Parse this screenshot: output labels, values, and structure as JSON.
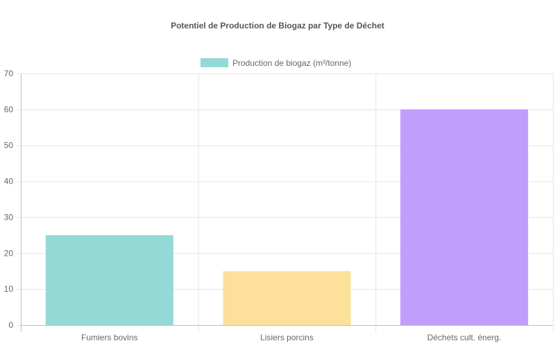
{
  "chart_data": {
    "type": "bar",
    "title": "Potentiel de Production de Biogaz par Type de Déchet",
    "categories": [
      "Fumiers bovins",
      "Lisiers porcins",
      "Déchets cult. énerg."
    ],
    "series": [
      {
        "name": "Production de biogaz (m³/tonne)",
        "values": [
          25,
          15,
          60
        ]
      }
    ],
    "bar_colors": [
      "#94d9d6",
      "#fde19a",
      "#c19dfe"
    ],
    "legend_color": "#94d9d6",
    "legend_position": "top",
    "xlabel": "",
    "ylabel": "",
    "ylim": [
      0,
      70
    ],
    "yticks": [
      0,
      10,
      20,
      30,
      40,
      50,
      60,
      70
    ],
    "grid": true
  }
}
